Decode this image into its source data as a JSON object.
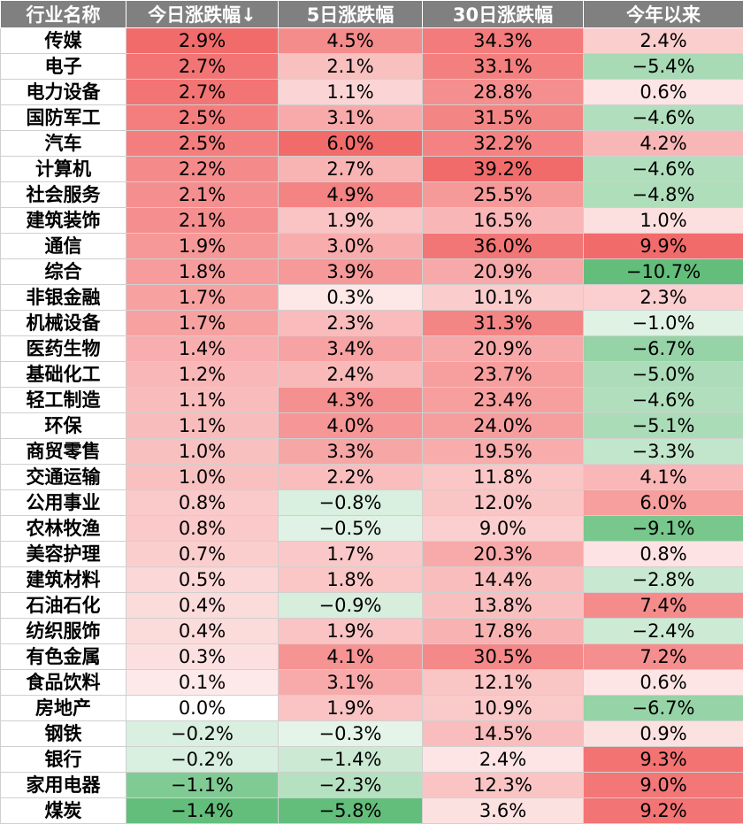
{
  "chart_data": {
    "type": "heatmap",
    "headers": [
      "行业名称",
      "今日涨跌幅↓",
      "5日涨跌幅",
      "30日涨跌幅",
      "今年以来"
    ],
    "rows": [
      {
        "name": "传媒",
        "values": [
          "2.9%",
          "4.5%",
          "34.3%",
          "2.4%"
        ]
      },
      {
        "name": "电子",
        "values": [
          "2.7%",
          "2.1%",
          "33.1%",
          "−5.4%"
        ]
      },
      {
        "name": "电力设备",
        "values": [
          "2.7%",
          "1.1%",
          "28.8%",
          "0.6%"
        ]
      },
      {
        "name": "国防军工",
        "values": [
          "2.5%",
          "3.1%",
          "31.5%",
          "−4.6%"
        ]
      },
      {
        "name": "汽车",
        "values": [
          "2.5%",
          "6.0%",
          "32.2%",
          "4.2%"
        ]
      },
      {
        "name": "计算机",
        "values": [
          "2.2%",
          "2.7%",
          "39.2%",
          "−4.6%"
        ]
      },
      {
        "name": "社会服务",
        "values": [
          "2.1%",
          "4.9%",
          "25.5%",
          "−4.8%"
        ]
      },
      {
        "name": "建筑装饰",
        "values": [
          "2.1%",
          "1.9%",
          "16.5%",
          "1.0%"
        ]
      },
      {
        "name": "通信",
        "values": [
          "1.9%",
          "3.0%",
          "36.0%",
          "9.9%"
        ]
      },
      {
        "name": "综合",
        "values": [
          "1.8%",
          "3.9%",
          "20.9%",
          "−10.7%"
        ]
      },
      {
        "name": "非银金融",
        "values": [
          "1.7%",
          "0.3%",
          "10.1%",
          "2.3%"
        ]
      },
      {
        "name": "机械设备",
        "values": [
          "1.7%",
          "2.3%",
          "31.3%",
          "−1.0%"
        ]
      },
      {
        "name": "医药生物",
        "values": [
          "1.4%",
          "3.4%",
          "20.9%",
          "−6.7%"
        ]
      },
      {
        "name": "基础化工",
        "values": [
          "1.2%",
          "2.4%",
          "23.7%",
          "−5.0%"
        ]
      },
      {
        "name": "轻工制造",
        "values": [
          "1.1%",
          "4.3%",
          "23.4%",
          "−4.6%"
        ]
      },
      {
        "name": "环保",
        "values": [
          "1.1%",
          "4.0%",
          "24.0%",
          "−5.1%"
        ]
      },
      {
        "name": "商贸零售",
        "values": [
          "1.0%",
          "3.3%",
          "19.5%",
          "−3.3%"
        ]
      },
      {
        "name": "交通运输",
        "values": [
          "1.0%",
          "2.2%",
          "11.8%",
          "4.1%"
        ]
      },
      {
        "name": "公用事业",
        "values": [
          "0.8%",
          "−0.8%",
          "12.0%",
          "6.0%"
        ]
      },
      {
        "name": "农林牧渔",
        "values": [
          "0.8%",
          "−0.5%",
          "9.0%",
          "−9.1%"
        ]
      },
      {
        "name": "美容护理",
        "values": [
          "0.7%",
          "1.7%",
          "20.3%",
          "0.8%"
        ]
      },
      {
        "name": "建筑材料",
        "values": [
          "0.5%",
          "1.8%",
          "14.4%",
          "−2.8%"
        ]
      },
      {
        "name": "石油石化",
        "values": [
          "0.4%",
          "−0.9%",
          "13.8%",
          "7.4%"
        ]
      },
      {
        "name": "纺织服饰",
        "values": [
          "0.4%",
          "1.9%",
          "17.8%",
          "−2.4%"
        ]
      },
      {
        "name": "有色金属",
        "values": [
          "0.3%",
          "4.1%",
          "30.5%",
          "7.2%"
        ]
      },
      {
        "name": "食品饮料",
        "values": [
          "0.1%",
          "3.1%",
          "12.1%",
          "0.6%"
        ]
      },
      {
        "name": "房地产",
        "values": [
          "0.0%",
          "1.9%",
          "10.9%",
          "−6.7%"
        ]
      },
      {
        "name": "钢铁",
        "values": [
          "−0.2%",
          "−0.3%",
          "14.5%",
          "0.9%"
        ]
      },
      {
        "name": "银行",
        "values": [
          "−0.2%",
          "−1.4%",
          "2.4%",
          "9.3%"
        ]
      },
      {
        "name": "家用电器",
        "values": [
          "−1.1%",
          "−2.3%",
          "12.3%",
          "9.0%"
        ]
      },
      {
        "name": "煤炭",
        "values": [
          "−1.4%",
          "−5.8%",
          "3.6%",
          "9.2%"
        ]
      }
    ]
  },
  "colors": {
    "header_bg": "#808080",
    "header_text": "#ffffff",
    "positive_max": "#f26b6b",
    "negative_max": "#63be7b",
    "neutral": "#ffffff"
  }
}
